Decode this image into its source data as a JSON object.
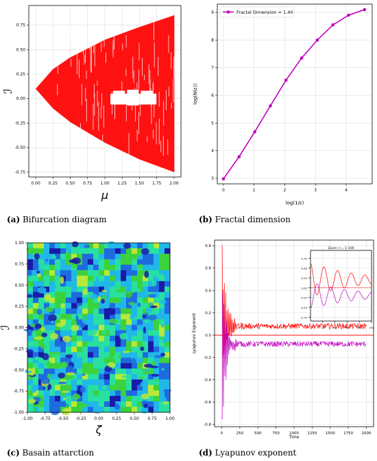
{
  "captions": {
    "a": {
      "letter": "(a)",
      "text": "Bifurcation diagram"
    },
    "b": {
      "letter": "(b)",
      "text": "Fractal dimension"
    },
    "c": {
      "letter": "(c)",
      "text": "Basain attarction"
    },
    "d": {
      "letter": "(d)",
      "text": "Lyapunov exponent"
    }
  },
  "chart_data": [
    {
      "id": "a",
      "type": "scatter",
      "title": "",
      "xlabel": "μ",
      "ylabel": "ℐ",
      "xlim": [
        -0.1,
        2.1
      ],
      "ylim": [
        -0.8,
        0.95
      ],
      "xticks": [
        "0.00",
        "0.25",
        "0.50",
        "0.75",
        "1.00",
        "1.25",
        "1.50",
        "1.75",
        "2.00"
      ],
      "yticks": [
        "-0.75",
        "-0.50",
        "-0.25",
        "0.00",
        "0.25",
        "0.50",
        "0.75"
      ],
      "xtick_values": [
        0,
        0.25,
        0.5,
        0.75,
        1,
        1.25,
        1.5,
        1.75,
        2
      ],
      "ytick_values": [
        -0.75,
        -0.5,
        -0.25,
        0,
        0.25,
        0.5,
        0.75
      ],
      "color": "#ff0000",
      "grid": true,
      "series_description": "bifurcation cloud from approx. 0.1 at μ=0 widening to [-0.75, 0.85] at μ=2",
      "upper_edge": {
        "x": [
          0,
          0.25,
          0.5,
          1.0,
          1.5,
          2.0
        ],
        "y": [
          0.1,
          0.3,
          0.42,
          0.6,
          0.73,
          0.85
        ]
      },
      "lower_edge": {
        "x": [
          0,
          0.25,
          0.5,
          1.0,
          1.5,
          2.0
        ],
        "y": [
          0.1,
          -0.1,
          -0.24,
          -0.45,
          -0.62,
          -0.75
        ]
      }
    },
    {
      "id": "b",
      "type": "line",
      "title": "",
      "xlabel": "log(1/ε)",
      "ylabel": "log(N(ε))",
      "xlim": [
        -0.2,
        4.85
      ],
      "ylim": [
        2.8,
        9.3
      ],
      "xticks": [
        "0",
        "1",
        "2",
        "3",
        "4"
      ],
      "yticks": [
        "3",
        "4",
        "5",
        "6",
        "7",
        "8",
        "9"
      ],
      "xtick_values": [
        0,
        1,
        2,
        3,
        4
      ],
      "ytick_values": [
        3,
        4,
        5,
        6,
        7,
        8,
        9
      ],
      "legend": "top-left",
      "grid": true,
      "series": [
        {
          "name": "Fractal Dimension ≈ 1.40",
          "color": "#c000c0",
          "x": [
            0,
            0.51,
            1.02,
            1.53,
            2.04,
            2.55,
            3.06,
            3.57,
            4.08,
            4.6
          ],
          "y": [
            2.98,
            3.78,
            4.68,
            5.62,
            6.55,
            7.35,
            8.0,
            8.55,
            8.9,
            9.1
          ]
        }
      ]
    },
    {
      "id": "c",
      "type": "heatmap",
      "title": "",
      "xlabel": "ζ",
      "ylabel": "ℐ",
      "xlim": [
        -1,
        1
      ],
      "ylim": [
        -1,
        1
      ],
      "xticks": [
        "-1.00",
        "-0.75",
        "-0.50",
        "-0.25",
        "0.00",
        "0.25",
        "0.50",
        "0.75",
        "1.00"
      ],
      "yticks": [
        "-1.00",
        "-0.75",
        "-0.50",
        "-0.25",
        "0.00",
        "0.25",
        "0.50",
        "0.75",
        "1.00"
      ],
      "xtick_values": [
        -1,
        -0.75,
        -0.5,
        -0.25,
        0,
        0.25,
        0.5,
        0.75,
        1
      ],
      "ytick_values": [
        -1,
        -0.75,
        -0.5,
        -0.25,
        0,
        0.25,
        0.5,
        0.75,
        1
      ],
      "colormap": [
        "#1a1aa8",
        "#1e6be0",
        "#20b8e8",
        "#28e0a0",
        "#3cd23c",
        "#b8e838"
      ]
    },
    {
      "id": "d",
      "type": "line",
      "title": "",
      "xlabel": "Time",
      "ylabel": "Lyapunov Exponent",
      "xlim": [
        -100,
        2100
      ],
      "ylim": [
        -0.82,
        0.85
      ],
      "xticks": [
        "0",
        "250",
        "500",
        "750",
        "1000",
        "1250",
        "1500",
        "1750",
        "2000"
      ],
      "yticks": [
        "-0.8",
        "-0.6",
        "-0.4",
        "-0.2",
        "0.0",
        "0.2",
        "0.4",
        "0.6",
        "0.8"
      ],
      "xtick_values": [
        0,
        250,
        500,
        750,
        1000,
        1250,
        1500,
        1750,
        2000
      ],
      "ytick_values": [
        -0.8,
        -0.6,
        -0.4,
        -0.2,
        0,
        0.2,
        0.4,
        0.6,
        0.8
      ],
      "grid": true,
      "zero_line_color": "#ff0000",
      "series": [
        {
          "name": "",
          "color": "#ff0000",
          "start": 0.8,
          "steady": 0.08
        },
        {
          "name": "",
          "color": "#c000c0",
          "start": -0.75,
          "steady": -0.08
        }
      ],
      "inset": {
        "title": "Zoom: t = 1–100",
        "xlim": [
          0,
          100
        ],
        "ylim": [
          -0.85,
          0.95
        ],
        "xticks": [
          "20",
          "40",
          "60",
          "80",
          "100"
        ],
        "xtick_values": [
          20,
          40,
          60,
          80,
          100
        ],
        "yticks": [
          "-0.75",
          "-0.50",
          "-0.25",
          "0.00",
          "0.25",
          "0.50",
          "0.75"
        ],
        "ytick_values": [
          -0.75,
          -0.5,
          -0.25,
          0,
          0.25,
          0.5,
          0.75
        ]
      }
    }
  ]
}
